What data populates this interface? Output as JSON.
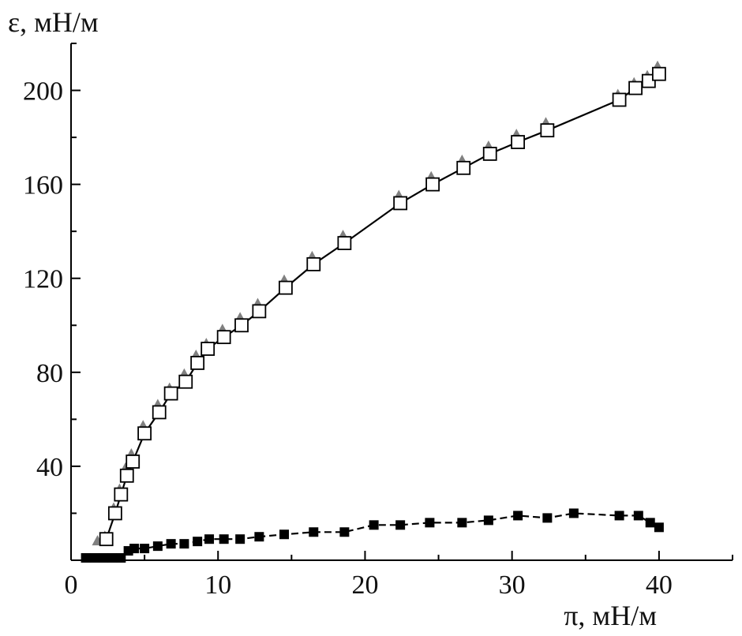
{
  "chart_data": {
    "type": "scatter",
    "xlabel": "π, мН/м",
    "ylabel": "ε, мН/м",
    "xlim": [
      0,
      45
    ],
    "ylim": [
      0,
      220
    ],
    "x_ticks": [
      0,
      10,
      20,
      30,
      40
    ],
    "y_ticks": [
      40,
      80,
      120,
      160,
      200
    ],
    "x_tick_labels": [
      "0",
      "10",
      "20",
      "30",
      "40"
    ],
    "y_tick_labels": [
      "40",
      "80",
      "120",
      "160",
      "200"
    ],
    "grid": false,
    "legend": "none",
    "colors": {
      "line": "#000000",
      "open_square_fill": "#ffffff",
      "open_square_stroke": "#000000",
      "filled_square": "#000000",
      "triangle": "#808080"
    },
    "series": [
      {
        "marker": "open-square",
        "line": "solid",
        "points": [
          [
            2.4,
            9
          ],
          [
            3.0,
            20
          ],
          [
            3.4,
            28
          ],
          [
            3.8,
            36
          ],
          [
            4.2,
            42
          ],
          [
            5.0,
            54
          ],
          [
            6.0,
            63
          ],
          [
            6.8,
            71
          ],
          [
            7.8,
            76
          ],
          [
            8.6,
            84
          ],
          [
            9.3,
            90
          ],
          [
            10.4,
            95
          ],
          [
            11.6,
            100
          ],
          [
            12.8,
            106
          ],
          [
            14.6,
            116
          ],
          [
            16.5,
            126
          ],
          [
            18.6,
            135
          ],
          [
            22.4,
            152
          ],
          [
            24.6,
            160
          ],
          [
            26.7,
            167
          ],
          [
            28.5,
            173
          ],
          [
            30.4,
            178
          ],
          [
            32.4,
            183
          ],
          [
            37.3,
            196
          ],
          [
            38.4,
            201
          ],
          [
            39.3,
            204
          ],
          [
            40.0,
            207
          ]
        ]
      },
      {
        "marker": "triangle",
        "line": "none",
        "points": [
          [
            1.8,
            8
          ],
          [
            2.3,
            10
          ],
          [
            2.9,
            22
          ],
          [
            3.3,
            30
          ],
          [
            3.7,
            39
          ],
          [
            4.1,
            45
          ],
          [
            4.9,
            57
          ],
          [
            5.9,
            66
          ],
          [
            6.7,
            73
          ],
          [
            7.7,
            79
          ],
          [
            8.5,
            87
          ],
          [
            9.2,
            92
          ],
          [
            10.3,
            98
          ],
          [
            11.5,
            103
          ],
          [
            12.7,
            109
          ],
          [
            14.5,
            119
          ],
          [
            16.4,
            129
          ],
          [
            18.5,
            138
          ],
          [
            22.3,
            155
          ],
          [
            24.5,
            163
          ],
          [
            26.6,
            170
          ],
          [
            28.4,
            176
          ],
          [
            30.3,
            181
          ],
          [
            32.3,
            186
          ],
          [
            37.2,
            198
          ],
          [
            38.3,
            203
          ],
          [
            39.2,
            206
          ],
          [
            39.9,
            210
          ]
        ]
      },
      {
        "marker": "filled-square",
        "line": "dashed",
        "points": [
          [
            1.0,
            1
          ],
          [
            1.6,
            1
          ],
          [
            2.2,
            1
          ],
          [
            2.8,
            1
          ],
          [
            3.4,
            1
          ],
          [
            3.9,
            4
          ],
          [
            4.3,
            5
          ],
          [
            5.0,
            5
          ],
          [
            5.9,
            6
          ],
          [
            6.8,
            7
          ],
          [
            7.7,
            7
          ],
          [
            8.6,
            8
          ],
          [
            9.4,
            9
          ],
          [
            10.4,
            9
          ],
          [
            11.5,
            9
          ],
          [
            12.8,
            10
          ],
          [
            14.5,
            11
          ],
          [
            16.5,
            12
          ],
          [
            18.6,
            12
          ],
          [
            20.6,
            15
          ],
          [
            22.4,
            15
          ],
          [
            24.4,
            16
          ],
          [
            26.6,
            16
          ],
          [
            28.4,
            17
          ],
          [
            30.4,
            19
          ],
          [
            32.4,
            18
          ],
          [
            34.2,
            20
          ],
          [
            37.3,
            19
          ],
          [
            38.6,
            19
          ],
          [
            39.4,
            16
          ],
          [
            40.0,
            14
          ]
        ]
      }
    ]
  }
}
